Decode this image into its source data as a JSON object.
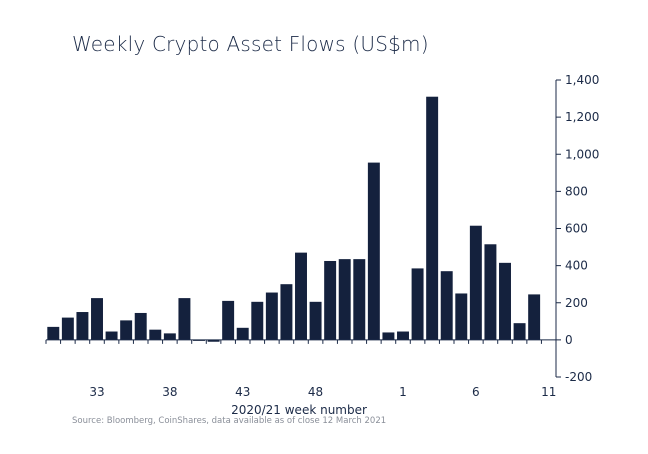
{
  "chart_data": {
    "type": "bar",
    "title": "Weekly Crypto Asset Flows (US$m)",
    "xlabel": "2020/21 week number",
    "ylabel": "",
    "source": "Source: Bloomberg, CoinShares, data available as of close 12 March 2021",
    "ylim": [
      -200,
      1400
    ],
    "yticks": [
      -200,
      0,
      200,
      400,
      600,
      800,
      1000,
      1200,
      1400
    ],
    "ytick_labels": [
      "-200",
      "0",
      "200",
      "400",
      "600",
      "800",
      "1,000",
      "1,200",
      "1,400"
    ],
    "y_axis_position": "right",
    "grid": false,
    "bar_color": "#14213d",
    "categories": [
      "30",
      "31",
      "32",
      "33",
      "34",
      "35",
      "36",
      "37",
      "38",
      "39",
      "40",
      "41",
      "42",
      "43",
      "44",
      "45",
      "46",
      "47",
      "48",
      "49",
      "50",
      "51",
      "52",
      "53",
      "1",
      "2",
      "3",
      "4",
      "5",
      "6",
      "7",
      "8",
      "9",
      "10",
      "11"
    ],
    "values": [
      70,
      120,
      150,
      225,
      45,
      105,
      145,
      55,
      35,
      225,
      -5,
      -10,
      210,
      65,
      205,
      255,
      300,
      470,
      205,
      425,
      435,
      435,
      955,
      40,
      45,
      385,
      1310,
      370,
      250,
      615,
      515,
      415,
      90,
      245,
      0
    ],
    "x_tick_labels": [
      {
        "category": "33",
        "label": "33"
      },
      {
        "category": "38",
        "label": "38"
      },
      {
        "category": "43",
        "label": "43"
      },
      {
        "category": "48",
        "label": "48"
      },
      {
        "category": "1",
        "label": "1"
      },
      {
        "category": "6",
        "label": "6"
      },
      {
        "category": "11",
        "label": "11"
      }
    ]
  }
}
